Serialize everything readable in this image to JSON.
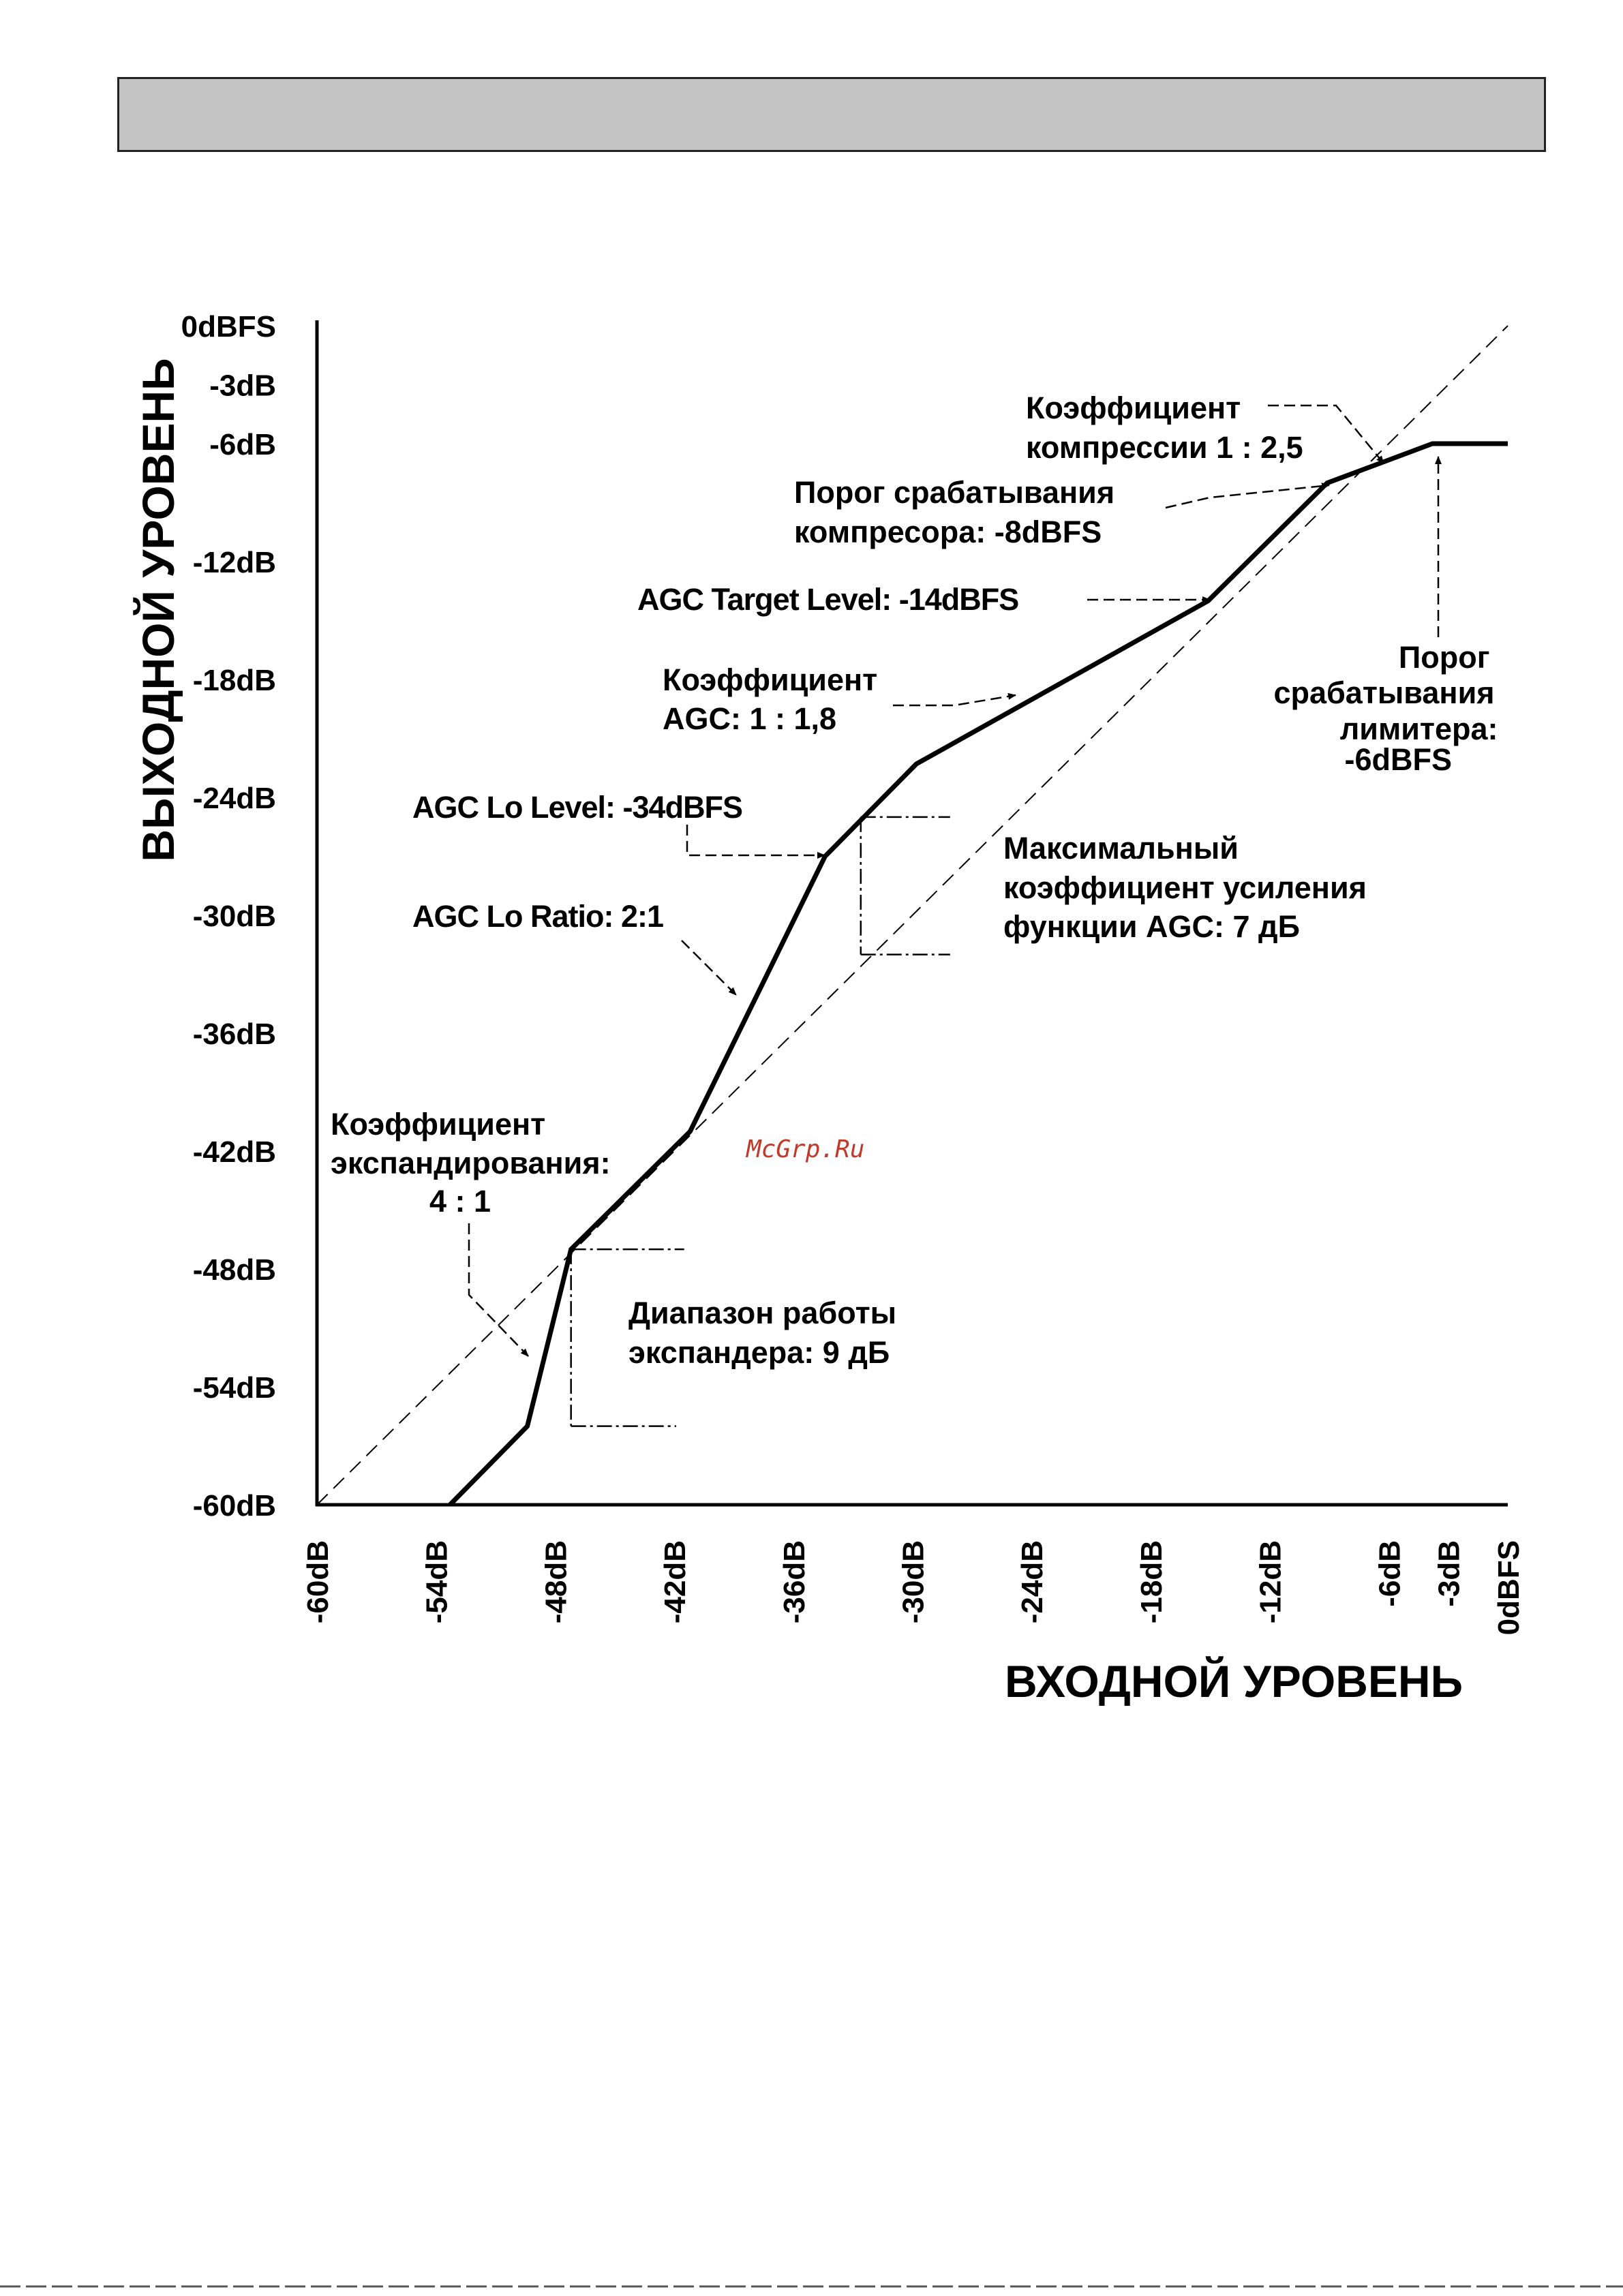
{
  "page": {
    "watermark": "McGrp.Ru"
  },
  "chart_data": {
    "type": "line",
    "xlabel": "ВХОДНОЙ УРОВЕНЬ",
    "ylabel": "ВЫХОДНОЙ УРОВЕНЬ",
    "xlim": [
      -60,
      0
    ],
    "ylim": [
      -60,
      0
    ],
    "x_ticks": [
      {
        "value": -60,
        "label": "-60dB"
      },
      {
        "value": -54,
        "label": "-54dB"
      },
      {
        "value": -48,
        "label": "-48dB"
      },
      {
        "value": -42,
        "label": "-42dB"
      },
      {
        "value": -36,
        "label": "-36dB"
      },
      {
        "value": -30,
        "label": "-30dB"
      },
      {
        "value": -24,
        "label": "-24dB"
      },
      {
        "value": -18,
        "label": "-18dB"
      },
      {
        "value": -12,
        "label": "-12dB"
      },
      {
        "value": -6,
        "label": "-6dB"
      },
      {
        "value": -3,
        "label": "-3dB"
      },
      {
        "value": 0,
        "label": "0dBFS"
      }
    ],
    "y_ticks": [
      {
        "value": 0,
        "label": "0dBFS"
      },
      {
        "value": -3,
        "label": "-3dB"
      },
      {
        "value": -6,
        "label": "-6dB"
      },
      {
        "value": -12,
        "label": "-12dB"
      },
      {
        "value": -18,
        "label": "-18dB"
      },
      {
        "value": -24,
        "label": "-24dB"
      },
      {
        "value": -30,
        "label": "-30dB"
      },
      {
        "value": -36,
        "label": "-36dB"
      },
      {
        "value": -42,
        "label": "-42dB"
      },
      {
        "value": -48,
        "label": "-48dB"
      },
      {
        "value": -54,
        "label": "-54dB"
      },
      {
        "value": -60,
        "label": "-60dB"
      }
    ],
    "series": [
      {
        "style": "solid",
        "x": [
          -53.3,
          -49.4,
          -47.2,
          -41.2,
          -34.4,
          -29.8,
          -15.1,
          -9.1,
          -3.8,
          0
        ],
        "y": [
          -60,
          -56,
          -47,
          -41,
          -27,
          -22.3,
          -14,
          -8,
          -6,
          -6
        ]
      },
      {
        "style": "dashed",
        "x": [
          -60,
          0
        ],
        "y": [
          -60,
          0
        ]
      }
    ],
    "guides": [
      {
        "x1": -47.2,
        "y1": -47,
        "x2": -41.5,
        "y2": -47
      },
      {
        "x1": -47.2,
        "y1": -56,
        "x2": -41.9,
        "y2": -56
      },
      {
        "x1": -47.2,
        "y1": -47,
        "x2": -47.2,
        "y2": -56
      },
      {
        "x1": -32.6,
        "y1": -25,
        "x2": -28.1,
        "y2": -25
      },
      {
        "x1": -32.6,
        "y1": -32,
        "x2": -28.1,
        "y2": -32
      },
      {
        "x1": -32.6,
        "y1": -25,
        "x2": -32.6,
        "y2": -32
      }
    ],
    "annotations": [
      {
        "lines": [
          "Коэффициент",
          "компрессии 1 : 2,5"
        ],
        "style": "normal"
      },
      {
        "lines": [
          "Порог срабатывания",
          "компресора: -8dBFS"
        ],
        "style": "normal"
      },
      {
        "lines": [
          "AGC Target Level: -14dBFS"
        ],
        "style": "strong"
      },
      {
        "lines": [
          "Коэффициент",
          "AGC: 1 : 1,8"
        ],
        "style": "normal"
      },
      {
        "lines": [
          "Порог",
          "срабатывания",
          "лимитера:",
          "-6dBFS"
        ],
        "style": "normal"
      },
      {
        "lines": [
          "AGC Lo Level: -34dBFS"
        ],
        "style": "strong"
      },
      {
        "lines": [
          "Максимальный",
          "коэффициент усиления",
          "функции AGC: 7 дБ"
        ],
        "style": "normal"
      },
      {
        "lines": [
          "AGC Lo Ratio: 2:1"
        ],
        "style": "strong"
      },
      {
        "lines": [
          "Коэффициент",
          "экспандирования:",
          "4 : 1"
        ],
        "style": "normal"
      },
      {
        "lines": [
          "Диапазон работы",
          "экспандера: 9 дБ"
        ],
        "style": "normal"
      }
    ]
  }
}
